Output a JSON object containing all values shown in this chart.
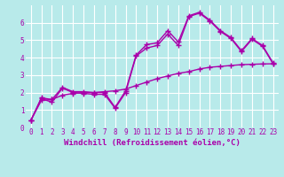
{
  "bg_color": "#b8eaea",
  "line_color": "#aa00aa",
  "grid_color": "#ffffff",
  "xlabel": "Windchill (Refroidissement éolien,°C)",
  "xlim": [
    -0.5,
    23.5
  ],
  "ylim": [
    0,
    7
  ],
  "xticks": [
    0,
    1,
    2,
    3,
    4,
    5,
    6,
    7,
    8,
    9,
    10,
    11,
    12,
    13,
    14,
    15,
    16,
    17,
    18,
    19,
    20,
    21,
    22,
    23
  ],
  "yticks": [
    0,
    1,
    2,
    3,
    4,
    5,
    6
  ],
  "line1_x": [
    0,
    1,
    2,
    3,
    4,
    5,
    6,
    7,
    8,
    9,
    10,
    11,
    12,
    13,
    14,
    15,
    16,
    17,
    18,
    19,
    20,
    21,
    22,
    23
  ],
  "line1_y": [
    0.4,
    1.65,
    1.45,
    2.25,
    2.0,
    1.95,
    1.9,
    1.9,
    1.1,
    2.0,
    4.1,
    4.55,
    4.7,
    5.35,
    4.7,
    6.35,
    6.55,
    6.1,
    5.5,
    5.1,
    4.35,
    5.05,
    4.65,
    3.65
  ],
  "line2_x": [
    0,
    1,
    2,
    3,
    4,
    5,
    6,
    7,
    8,
    9,
    10,
    11,
    12,
    13,
    14,
    15,
    16,
    17,
    18,
    19,
    20,
    21,
    22,
    23
  ],
  "line2_y": [
    0.4,
    1.7,
    1.6,
    2.3,
    2.05,
    2.05,
    2.0,
    2.0,
    1.15,
    2.1,
    4.15,
    4.75,
    4.85,
    5.55,
    4.9,
    6.4,
    6.6,
    6.15,
    5.55,
    5.15,
    4.4,
    5.1,
    4.7,
    3.7
  ],
  "line3_x": [
    0,
    1,
    2,
    3,
    4,
    5,
    6,
    7,
    8,
    9,
    10,
    11,
    12,
    13,
    14,
    15,
    16,
    17,
    18,
    19,
    20,
    21,
    22,
    23
  ],
  "line3_y": [
    0.4,
    1.55,
    1.6,
    1.85,
    1.95,
    2.0,
    2.0,
    2.05,
    2.1,
    2.2,
    2.4,
    2.6,
    2.8,
    2.95,
    3.1,
    3.2,
    3.35,
    3.45,
    3.5,
    3.55,
    3.6,
    3.62,
    3.64,
    3.65
  ],
  "marker": "+",
  "markersize": 4,
  "linewidth": 1.0,
  "font_family": "monospace",
  "xlabel_fontsize": 6.5,
  "tick_fontsize": 5.5
}
